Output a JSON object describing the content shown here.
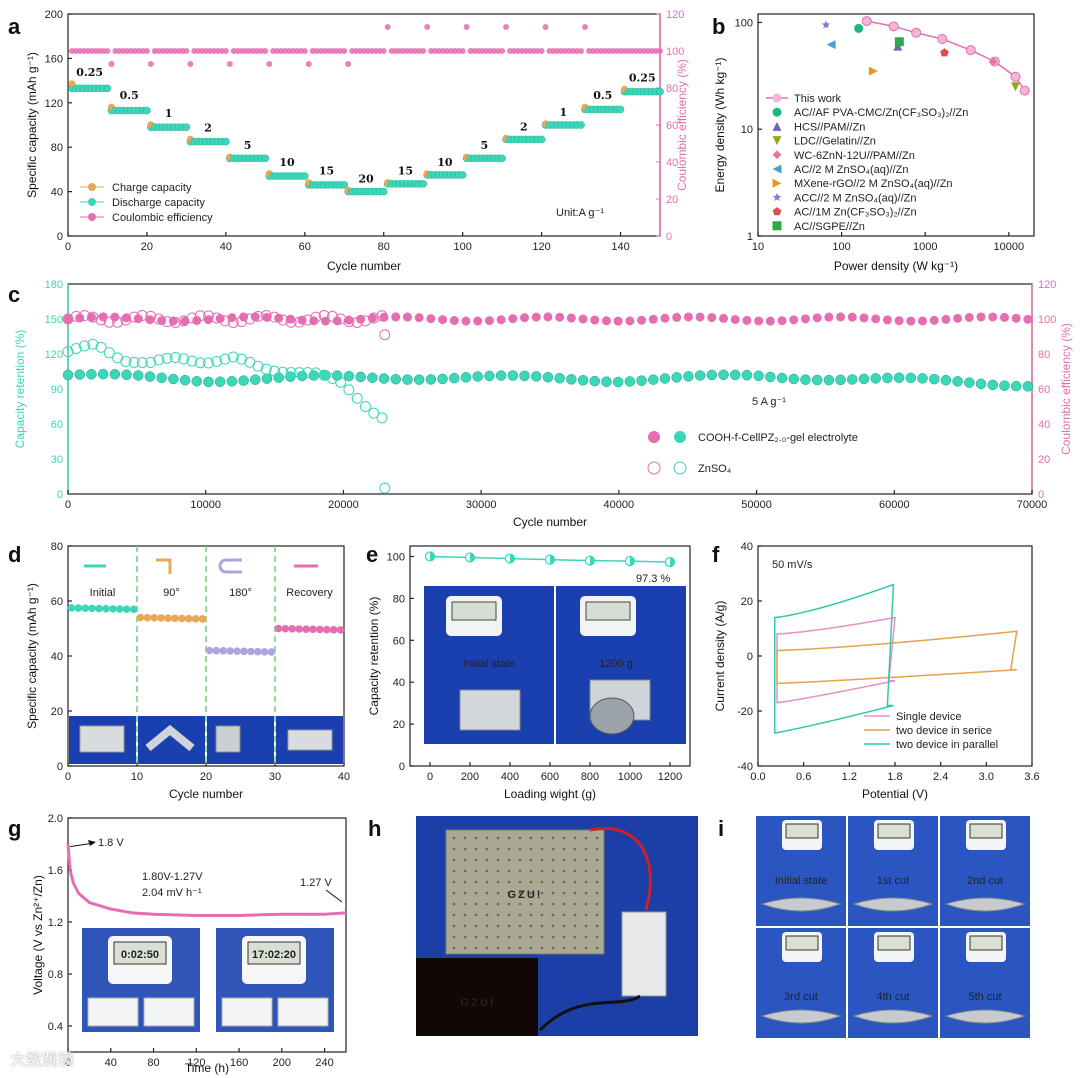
{
  "panels": {
    "a": {
      "label": "a",
      "xlabel": "Cycle number",
      "ylabel_left": "Specific capacity (mAh g⁻¹)",
      "ylabel_right": "Coulombic efficiency (%)",
      "xticks": [
        "0",
        "20",
        "40",
        "60",
        "80",
        "100",
        "120",
        "140"
      ],
      "yticks_left": [
        "0",
        "40",
        "80",
        "120",
        "160",
        "200"
      ],
      "yticks_right": [
        "0",
        "20",
        "40",
        "60",
        "80",
        "100",
        "120"
      ],
      "unit_note": "Unit:A g⁻¹",
      "rate_labels": [
        "0.25",
        "0.5",
        "1",
        "2",
        "5",
        "10",
        "15",
        "20",
        "15",
        "10",
        "5",
        "2",
        "1",
        "0.5",
        "0.25"
      ],
      "legend": [
        "Charge capacity",
        "Discharge capacity",
        "Coulombic efficiency"
      ]
    },
    "b": {
      "label": "b",
      "xlabel": "Power density (W kg⁻¹)",
      "ylabel": "Energy density (Wh kg⁻¹)",
      "xticks": [
        "10",
        "100",
        "1000",
        "10000"
      ],
      "yticks": [
        "1",
        "10",
        "100"
      ],
      "legend": [
        "This work",
        "AC//AF PVA-CMC/Zn(CF₃SO₃)₂//Zn",
        "HCS//PAM//Zn",
        "LDC//Gelatin//Zn",
        "WC-6ZnN-12U//PAM//Zn",
        "AC//2 M ZnSO₄(aq)//Zn",
        "MXene-rGO//2 M ZnSO₄(aq)//Zn",
        "ACC//2 M ZnSO₄(aq)//Zn",
        "AC//1M Zn(CF₃SO₃)₂//Zn",
        "AC//SGPE//Zn"
      ]
    },
    "c": {
      "label": "c",
      "xlabel": "Cycle number",
      "ylabel_left": "Capacity retention (%)",
      "ylabel_right": "Coulombic efficiency (%)",
      "xticks": [
        "0",
        "10000",
        "20000",
        "30000",
        "40000",
        "50000",
        "60000",
        "70000"
      ],
      "yticks_left": [
        "0",
        "30",
        "60",
        "90",
        "120",
        "150",
        "180"
      ],
      "yticks_right": [
        "0",
        "20",
        "40",
        "60",
        "80",
        "100",
        "120"
      ],
      "rate_note": "5 A g⁻¹",
      "legend": [
        "COOH-f-CellPZ₂.₀-gel electrolyte",
        "ZnSO₄"
      ]
    },
    "d": {
      "label": "d",
      "xlabel": "Cycle number",
      "ylabel": "Specific capacity (mAh g⁻¹)",
      "xticks": [
        "0",
        "10",
        "20",
        "30",
        "40"
      ],
      "yticks": [
        "0",
        "20",
        "40",
        "60",
        "80"
      ],
      "states": [
        "Initial",
        "90°",
        "180°",
        "Recovery"
      ]
    },
    "e": {
      "label": "e",
      "xlabel": "Loading wight (g)",
      "ylabel": "Capacity retention (%)",
      "xticks": [
        "0",
        "200",
        "400",
        "600",
        "800",
        "1000",
        "1200"
      ],
      "yticks": [
        "0",
        "20",
        "40",
        "60",
        "80",
        "100"
      ],
      "end_label": "97.3 %",
      "photo_labels": [
        "Initial state",
        "1200 g"
      ]
    },
    "f": {
      "label": "f",
      "xlabel": "Potential (V)",
      "ylabel": "Current density (A/g)",
      "xticks": [
        "0.0",
        "0.6",
        "1.2",
        "1.8",
        "2.4",
        "3.0",
        "3.6"
      ],
      "yticks": [
        "-40",
        "-20",
        "0",
        "20",
        "40"
      ],
      "scan_note": "50 mV/s",
      "legend": [
        "Single device",
        "two device in serice",
        "two device in parallel"
      ]
    },
    "g": {
      "label": "g",
      "xlabel": "Time (h)",
      "ylabel": "Voltage (V  vs Zn²⁺/Zn)",
      "xticks": [
        "0",
        "40",
        "80",
        "120",
        "160",
        "200",
        "240"
      ],
      "yticks": [
        "0.4",
        "0.8",
        "1.2",
        "1.6",
        "2.0"
      ],
      "start_label": "1.8 V",
      "end_label": "1.27 V",
      "range_note": "1.80V-1.27V",
      "rate_note": "2.04 mV h⁻¹",
      "timer_readouts": [
        "0:02:50",
        "17:02:20"
      ]
    },
    "h": {
      "label": "h",
      "led_text": "GZU!"
    },
    "i": {
      "label": "i",
      "photo_labels": [
        "Initial state",
        "1st cut",
        "2nd cut",
        "3rd cut",
        "4th cut",
        "5th cut"
      ]
    }
  },
  "watermark": "大数跳镜",
  "colors": {
    "pink": "#e56db1",
    "teal": "#3cd6b8",
    "orange": "#e8a857",
    "lilac": "#aaa6e0",
    "photo_blue": "#1a3fae"
  },
  "chart_data": [
    {
      "panel": "a",
      "type": "scatter",
      "xlim": [
        0,
        150
      ],
      "ylim_left": [
        0,
        200
      ],
      "ylim_right": [
        0,
        120
      ],
      "rate_steps": [
        {
          "rate": 0.25,
          "cycles": [
            1,
            10
          ],
          "charge": 137,
          "discharge": 133
        },
        {
          "rate": 0.5,
          "cycles": [
            11,
            20
          ],
          "charge": 116,
          "discharge": 113
        },
        {
          "rate": 1,
          "cycles": [
            21,
            30
          ],
          "charge": 100,
          "discharge": 98
        },
        {
          "rate": 2,
          "cycles": [
            31,
            40
          ],
          "charge": 87,
          "discharge": 85
        },
        {
          "rate": 5,
          "cycles": [
            41,
            50
          ],
          "charge": 71,
          "discharge": 70
        },
        {
          "rate": 10,
          "cycles": [
            51,
            60
          ],
          "charge": 56,
          "discharge": 54
        },
        {
          "rate": 15,
          "cycles": [
            61,
            70
          ],
          "charge": 48,
          "discharge": 46
        },
        {
          "rate": 20,
          "cycles": [
            71,
            80
          ],
          "charge": 41,
          "discharge": 40
        },
        {
          "rate": 15,
          "cycles": [
            81,
            90
          ],
          "charge": 48,
          "discharge": 47
        },
        {
          "rate": 10,
          "cycles": [
            91,
            100
          ],
          "charge": 56,
          "discharge": 55
        },
        {
          "rate": 5,
          "cycles": [
            101,
            110
          ],
          "charge": 71,
          "discharge": 70
        },
        {
          "rate": 2,
          "cycles": [
            111,
            120
          ],
          "charge": 88,
          "discharge": 87
        },
        {
          "rate": 1,
          "cycles": [
            121,
            130
          ],
          "charge": 101,
          "discharge": 100
        },
        {
          "rate": 0.5,
          "cycles": [
            131,
            140
          ],
          "charge": 116,
          "discharge": 114
        },
        {
          "rate": 0.25,
          "cycles": [
            141,
            150
          ],
          "charge": 132,
          "discharge": 130
        }
      ],
      "coulombic_efficiency": 100
    },
    {
      "panel": "b",
      "type": "scatter",
      "xscale": "log",
      "yscale": "log",
      "xlim": [
        10,
        20000
      ],
      "ylim": [
        1,
        120
      ],
      "series": [
        {
          "name": "This work",
          "x": [
            200,
            420,
            780,
            1600,
            3500,
            6800,
            12000,
            15500
          ],
          "y": [
            103,
            92,
            80,
            70,
            55,
            43,
            31,
            23
          ]
        },
        {
          "name": "AC//AF PVA-CMC/Zn(CF₃SO₃)₂//Zn",
          "x": [
            160
          ],
          "y": [
            88
          ]
        },
        {
          "name": "HCS//PAM//Zn",
          "x": [
            470
          ],
          "y": [
            60
          ]
        },
        {
          "name": "LDC//Gelatin//Zn",
          "x": [
            12000
          ],
          "y": [
            25
          ]
        },
        {
          "name": "WC-6ZnN-12U//PAM//Zn",
          "x": [
            6500
          ],
          "y": [
            43
          ]
        },
        {
          "name": "AC//2 M ZnSO₄(aq)//Zn",
          "x": [
            75
          ],
          "y": [
            62
          ]
        },
        {
          "name": "MXene-rGO//2 M ZnSO₄(aq)//Zn",
          "x": [
            240
          ],
          "y": [
            35
          ]
        },
        {
          "name": "ACC//2 M ZnSO₄(aq)//Zn",
          "x": [
            65
          ],
          "y": [
            95
          ]
        },
        {
          "name": "AC//1M Zn(CF₃SO₃)₂//Zn",
          "x": [
            1700
          ],
          "y": [
            52
          ]
        },
        {
          "name": "AC//SGPE//Zn",
          "x": [
            490
          ],
          "y": [
            66
          ]
        }
      ]
    },
    {
      "panel": "c",
      "type": "scatter",
      "xlim": [
        0,
        70000
      ],
      "ylim_left": [
        0,
        180
      ],
      "ylim_right": [
        0,
        120
      ],
      "series": [
        {
          "name": "COOH-f-CellPZ₂.₀-gel electrolyte",
          "retention_x": [
            0,
            10000,
            20000,
            30000,
            40000,
            50000,
            60000,
            70000
          ],
          "retention_y": [
            102,
            98,
            100,
            100,
            98,
            101,
            98,
            94
          ],
          "ce": 100
        },
        {
          "name": "ZnSO₄",
          "retention_x": [
            0,
            2000,
            4000,
            6000,
            8000,
            10000,
            12000,
            14000,
            16000,
            18000,
            20000,
            21000,
            22000,
            23000
          ],
          "retention_y": [
            122,
            127,
            116,
            112,
            116,
            114,
            116,
            108,
            106,
            102,
            95,
            84,
            72,
            63
          ],
          "ce": 100,
          "fail_point": [
            23000,
            5
          ]
        }
      ]
    },
    {
      "panel": "d",
      "type": "scatter",
      "xlim": [
        0,
        40
      ],
      "ylim": [
        0,
        80
      ],
      "segments": [
        {
          "name": "Initial",
          "cycles": [
            1,
            10
          ],
          "value": 57.5
        },
        {
          "name": "90°",
          "cycles": [
            11,
            20
          ],
          "value": 54
        },
        {
          "name": "180°",
          "cycles": [
            21,
            30
          ],
          "value": 42
        },
        {
          "name": "Recovery",
          "cycles": [
            31,
            40
          ],
          "value": 50
        }
      ]
    },
    {
      "panel": "e",
      "type": "line",
      "xlim": [
        -100,
        1300
      ],
      "ylim": [
        0,
        105
      ],
      "x": [
        0,
        200,
        400,
        600,
        800,
        1000,
        1200
      ],
      "y": [
        100,
        99.5,
        99,
        98.5,
        98,
        97.8,
        97.3
      ]
    },
    {
      "panel": "f",
      "type": "line",
      "xlim": [
        0,
        3.6
      ],
      "ylim": [
        -40,
        40
      ],
      "series": [
        {
          "name": "Single device"
        },
        {
          "name": "two device in serice"
        },
        {
          "name": "two device in parallel"
        }
      ]
    },
    {
      "panel": "g",
      "type": "line",
      "xlim": [
        0,
        260
      ],
      "ylim": [
        0.2,
        2.0
      ],
      "x": [
        0,
        2,
        5,
        10,
        20,
        40,
        60,
        80,
        120,
        160,
        200,
        240,
        260
      ],
      "y": [
        1.8,
        1.6,
        1.5,
        1.42,
        1.35,
        1.3,
        1.27,
        1.26,
        1.25,
        1.25,
        1.26,
        1.26,
        1.27
      ]
    }
  ]
}
